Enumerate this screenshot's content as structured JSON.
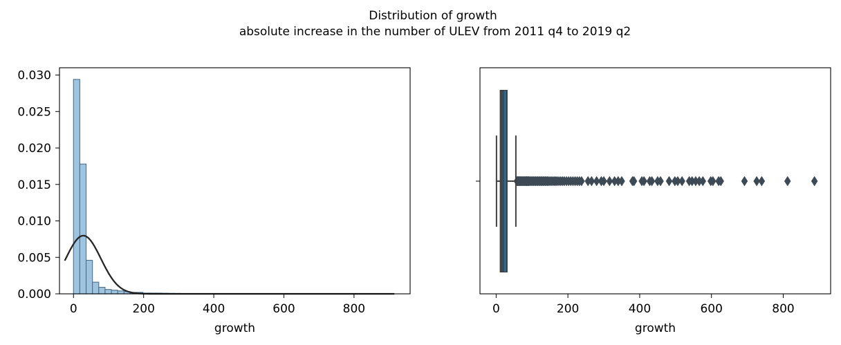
{
  "figure": {
    "title": "Distribution of growth",
    "subtitle": "absolute increase in the number of ULEV from 2011 q4 to 2019 q2"
  },
  "colors": {
    "hist_fill": "#9ec4e0",
    "hist_edge": "#4d6f8a",
    "kde_line": "#262626",
    "box_fill": "#3d4a55",
    "box_edge": "#3f3f3f",
    "median": "#1f77b4"
  },
  "chart_data": [
    {
      "type": "bar",
      "subtype": "histogram-with-density-curve",
      "xlabel": "growth",
      "ylabel": "",
      "xlim": [
        -40,
        960
      ],
      "ylim": [
        0,
        0.031
      ],
      "xticks": [
        0,
        200,
        400,
        600,
        800
      ],
      "yticks": [
        0.0,
        0.005,
        0.01,
        0.015,
        0.02,
        0.025,
        0.03
      ],
      "ytick_labels": [
        "0.000",
        "0.005",
        "0.010",
        "0.015",
        "0.020",
        "0.025",
        "0.030"
      ],
      "bin_width": 18,
      "bin_edges_start": 0,
      "values": [
        0.0294,
        0.0178,
        0.0046,
        0.0016,
        0.0009,
        0.0006,
        0.0005,
        0.0004,
        0.0003,
        0.0002,
        0.0002,
        0.0001,
        0.0001,
        0.0001,
        8e-05,
        6e-05,
        5e-05,
        4e-05,
        4e-05,
        3e-05,
        3e-05,
        3e-05,
        2e-05,
        2e-05,
        2e-05,
        2e-05,
        2e-05,
        2e-05,
        2e-05,
        2e-05,
        2e-05,
        2e-05,
        2e-05,
        2e-05,
        1e-05,
        1e-05,
        1e-05,
        1e-05,
        1e-05,
        1e-05,
        1e-05,
        1e-05,
        1e-05,
        1e-05,
        1e-05,
        1e-05,
        1e-05,
        1e-05,
        1e-05,
        1e-05
      ],
      "curve": {
        "type": "normal",
        "mean": 28,
        "sd": 50,
        "x_range": [
          -25,
          915
        ]
      },
      "grid": false
    },
    {
      "type": "box",
      "orientation": "horizontal",
      "xlabel": "growth",
      "xlim": [
        -45,
        932
      ],
      "xticks": [
        0,
        200,
        400,
        600,
        800
      ],
      "whisker_low": 1,
      "q1": 12,
      "median": 25,
      "q3": 30,
      "whisker_high": 55,
      "outliers": [
        58,
        60,
        62,
        64,
        66,
        68,
        70,
        72,
        74,
        76,
        78,
        80,
        82,
        84,
        86,
        88,
        90,
        92,
        95,
        98,
        101,
        104,
        107,
        110,
        113,
        116,
        119,
        122,
        125,
        128,
        131,
        134,
        137,
        140,
        143,
        146,
        150,
        154,
        158,
        162,
        166,
        170,
        175,
        180,
        185,
        190,
        196,
        202,
        208,
        214,
        220,
        226,
        232,
        238,
        256,
        266,
        280,
        293,
        300,
        316,
        330,
        340,
        350,
        380,
        384,
        406,
        412,
        428,
        434,
        450,
        458,
        482,
        498,
        506,
        518,
        538,
        546,
        556,
        566,
        576,
        598,
        604,
        620,
        626,
        692,
        726,
        740,
        812,
        887
      ],
      "grid": false
    }
  ]
}
